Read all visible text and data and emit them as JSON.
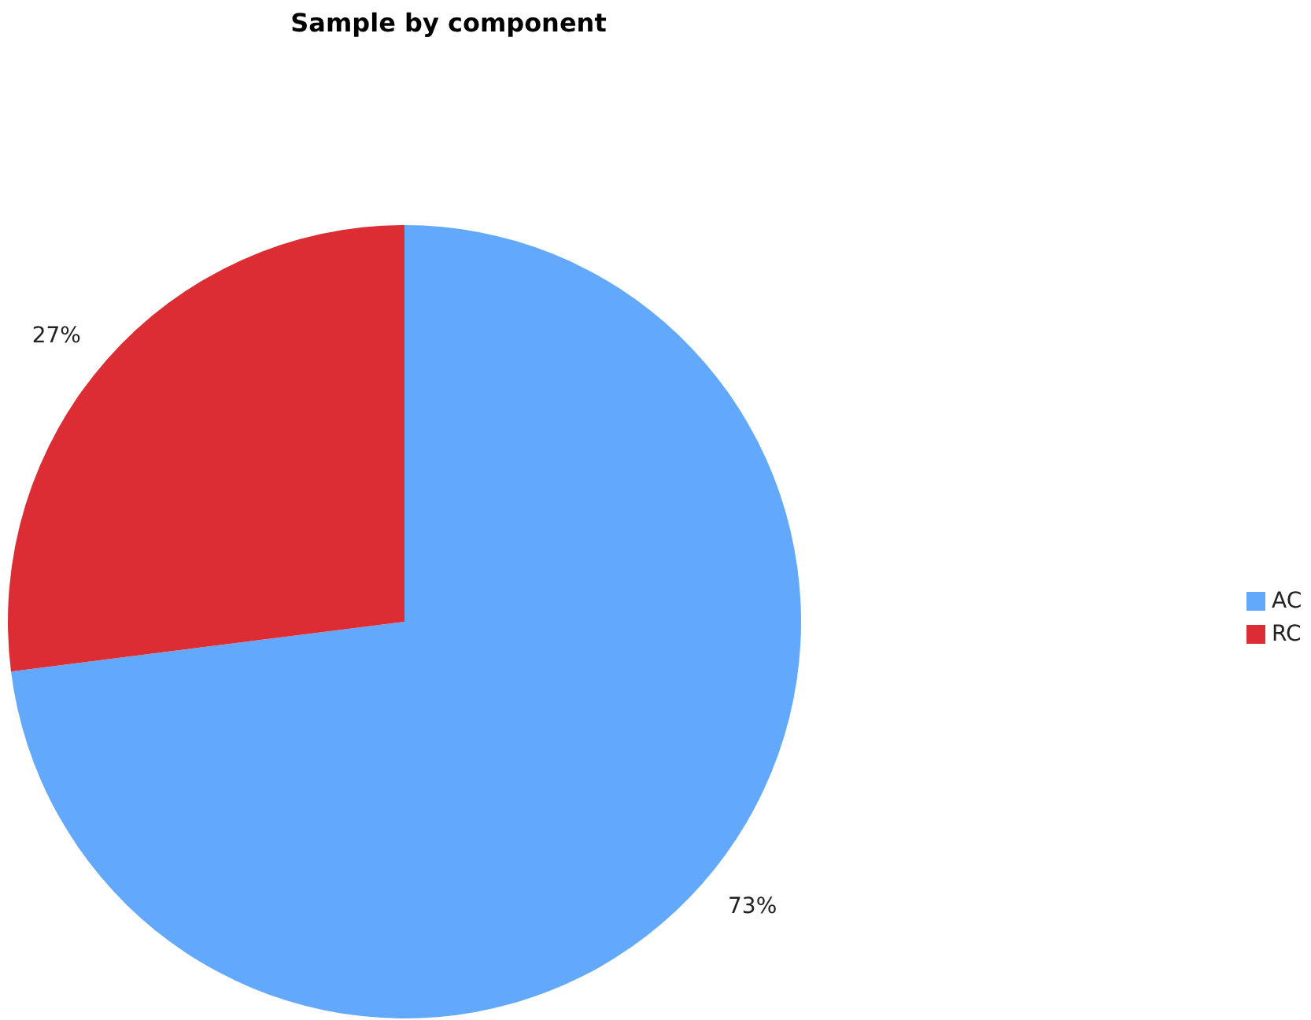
{
  "chart_data": {
    "type": "pie",
    "title": "Sample by component",
    "categories": [
      "AC",
      "RC"
    ],
    "values": [
      73,
      27
    ],
    "colors": [
      "#62a8fc",
      "#dc2d35"
    ],
    "value_labels": [
      "73%",
      "27%"
    ],
    "legend": "right"
  }
}
